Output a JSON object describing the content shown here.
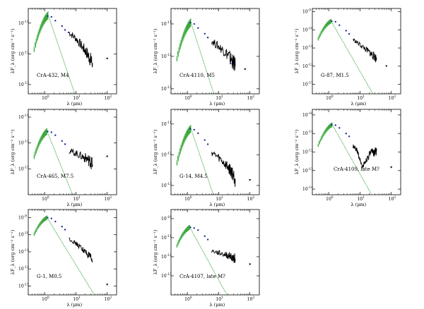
{
  "figure": {
    "xlabel": "λ (μm)",
    "ylabel": "λF_λ (erg cm⁻² s⁻¹)"
  },
  "chart_data": [
    {
      "type": "line",
      "label": "CrA-432, M4",
      "xscale": "log",
      "yscale": "log",
      "xlim": [
        0.3,
        200
      ],
      "ylim": [
        5e-14,
        3e-11
      ],
      "x_tick_labels": [
        "10^0",
        "10^1",
        "10^2"
      ],
      "y_tick_labels": [
        "10^-11",
        "10^-12",
        "10^-13"
      ],
      "model_peak": [
        1.3,
        1.8e-11
      ],
      "spectrum": [
        [
          6,
          5e-12
        ],
        [
          10,
          3.2e-12
        ],
        [
          16,
          1.7e-12
        ],
        [
          22,
          1.1e-12
        ],
        [
          28,
          7e-13
        ],
        [
          34,
          5e-13
        ]
      ],
      "photometry": [
        [
          1.25,
          1.7e-11
        ],
        [
          1.65,
          1.6e-11
        ],
        [
          2.2,
          1.2e-11
        ],
        [
          3.6,
          8e-12
        ],
        [
          4.5,
          6e-12
        ],
        [
          5.8,
          5e-12
        ],
        [
          100,
          7e-13
        ]
      ]
    },
    {
      "type": "line",
      "label": "CrA-4110, M5",
      "xscale": "log",
      "yscale": "log",
      "xlim": [
        0.3,
        200
      ],
      "ylim": [
        7e-14,
        3e-11
      ],
      "x_tick_labels": [
        "10^0",
        "10^1",
        "10^2"
      ],
      "y_tick_labels": [
        "10^-11",
        "10^-12",
        "10^-13"
      ],
      "model_peak": [
        1.3,
        1.1e-11
      ],
      "spectrum": [
        [
          6,
          3e-12
        ],
        [
          10,
          2e-12
        ],
        [
          16,
          1.4e-12
        ],
        [
          22,
          1e-12
        ],
        [
          28,
          7e-13
        ],
        [
          34,
          5e-13
        ]
      ],
      "photometry": [
        [
          1.25,
          1.1e-11
        ],
        [
          1.65,
          1e-11
        ],
        [
          2.2,
          7.5e-12
        ],
        [
          3.6,
          5e-12
        ],
        [
          4.5,
          3.8e-12
        ],
        [
          24,
          6e-13
        ],
        [
          70,
          4e-13
        ]
      ]
    },
    {
      "type": "line",
      "label": "G-87, M1.5",
      "xscale": "log",
      "yscale": "log",
      "xlim": [
        0.3,
        200
      ],
      "ylim": [
        3e-14,
        1.5e-09
      ],
      "x_tick_labels": [
        "10^0",
        "10^1",
        "10^2"
      ],
      "y_tick_labels": [
        "10^-9",
        "10^-10",
        "10^-11",
        "10^-12",
        "10^-13"
      ],
      "model_peak": [
        1.2,
        3e-10
      ],
      "spectrum": [
        [
          6,
          3e-11
        ],
        [
          10,
          1.5e-11
        ],
        [
          16,
          8e-12
        ],
        [
          22,
          5e-12
        ],
        [
          28,
          3.5e-12
        ],
        [
          34,
          2.5e-12
        ]
      ],
      "photometry": [
        [
          1.25,
          3e-10
        ],
        [
          1.65,
          2.8e-10
        ],
        [
          2.2,
          1.8e-10
        ],
        [
          3.6,
          9e-11
        ],
        [
          4.5,
          6e-11
        ],
        [
          70,
          1e-12
        ]
      ]
    },
    {
      "type": "line",
      "label": "CrA-465, M7.5",
      "xscale": "log",
      "yscale": "log",
      "xlim": [
        0.3,
        200
      ],
      "ylim": [
        1e-14,
        2e-11
      ],
      "x_tick_labels": [
        "10^0",
        "10^1",
        "10^2"
      ],
      "y_tick_labels": [
        "10^-11",
        "10^-12",
        "10^-13"
      ],
      "model_peak": [
        1.2,
        2.8e-12
      ],
      "spectrum": [
        [
          6,
          5e-13
        ],
        [
          10,
          4e-13
        ],
        [
          16,
          3e-13
        ],
        [
          22,
          2.5e-13
        ],
        [
          28,
          2e-13
        ],
        [
          34,
          1.5e-13
        ]
      ],
      "photometry": [
        [
          1.25,
          2.8e-12
        ],
        [
          1.65,
          2.6e-12
        ],
        [
          2.2,
          2e-12
        ],
        [
          3.6,
          1.2e-12
        ],
        [
          4.5,
          9e-13
        ],
        [
          100,
          3e-13
        ]
      ]
    },
    {
      "type": "line",
      "label": "G-14, M4.5",
      "xscale": "log",
      "yscale": "log",
      "xlim": [
        0.3,
        200
      ],
      "ylim": [
        5e-14,
        3e-11
      ],
      "x_tick_labels": [
        "10^0",
        "10^1",
        "10^2"
      ],
      "y_tick_labels": [
        "10^-11",
        "10^-12",
        "10^-13"
      ],
      "model_peak": [
        1.3,
        7e-12
      ],
      "spectrum": [
        [
          6,
          1.2e-12
        ],
        [
          10,
          8e-13
        ],
        [
          16,
          5e-13
        ],
        [
          22,
          3.5e-13
        ],
        [
          28,
          2.5e-13
        ],
        [
          34,
          1.6e-13
        ]
      ],
      "photometry": [
        [
          1.25,
          7e-12
        ],
        [
          1.65,
          6.5e-12
        ],
        [
          2.2,
          5e-12
        ],
        [
          3.6,
          3e-12
        ],
        [
          4.5,
          2.2e-12
        ],
        [
          100,
          1.5e-13
        ]
      ]
    },
    {
      "type": "line",
      "label": "CrA-4109, late M?",
      "xscale": "log",
      "yscale": "log",
      "xlim": [
        0.3,
        200
      ],
      "ylim": [
        5e-15,
        2e-10
      ],
      "x_tick_labels": [
        "10^0",
        "10^1",
        "10^2"
      ],
      "y_tick_labels": [
        "10^-10",
        "10^-11",
        "10^-12",
        "10^-13",
        "10^-14"
      ],
      "model_peak": [
        1.3,
        3e-11
      ],
      "spectrum": [
        [
          6,
          2e-12
        ],
        [
          8,
          1.2e-12
        ],
        [
          10,
          4e-13
        ],
        [
          12,
          1.5e-13
        ],
        [
          16,
          4e-13
        ],
        [
          22,
          9e-13
        ],
        [
          28,
          1e-12
        ],
        [
          34,
          1.1e-12
        ]
      ],
      "photometry": [
        [
          1.25,
          3e-11
        ],
        [
          1.65,
          2.8e-11
        ],
        [
          2.2,
          2e-11
        ],
        [
          3.6,
          1e-11
        ],
        [
          4.5,
          7e-12
        ],
        [
          100,
          1.5e-13
        ]
      ]
    },
    {
      "type": "line",
      "label": "G-1, M0.5",
      "xscale": "log",
      "yscale": "log",
      "xlim": [
        0.3,
        200
      ],
      "ylim": [
        3e-14,
        3e-09
      ],
      "x_tick_labels": [
        "10^0",
        "10^1",
        "10^2"
      ],
      "y_tick_labels": [
        "10^-9",
        "10^-10",
        "10^-11",
        "10^-12",
        "10^-13"
      ],
      "model_peak": [
        1.2,
        1e-09
      ],
      "spectrum": [
        [
          6,
          6e-11
        ],
        [
          10,
          3e-11
        ],
        [
          16,
          1.5e-11
        ],
        [
          22,
          8e-12
        ],
        [
          28,
          5e-12
        ],
        [
          34,
          3e-12
        ]
      ],
      "photometry": [
        [
          1.25,
          1e-09
        ],
        [
          1.65,
          9e-10
        ],
        [
          2.2,
          6e-10
        ],
        [
          3.6,
          3e-10
        ],
        [
          4.5,
          2e-10
        ],
        [
          100,
          1.2e-13
        ]
      ]
    },
    {
      "type": "line",
      "label": "CrA-4107, late M?",
      "xscale": "log",
      "yscale": "log",
      "xlim": [
        0.3,
        200
      ],
      "ylim": [
        1e-14,
        3e-10
      ],
      "x_tick_labels": [
        "10^0",
        "10^1",
        "10^2"
      ],
      "y_tick_labels": [
        "10^-10",
        "10^-11",
        "10^-12",
        "10^-13"
      ],
      "model_peak": [
        1.2,
        3.5e-11
      ],
      "spectrum": [
        [
          6,
          2e-12
        ],
        [
          10,
          1.6e-12
        ],
        [
          16,
          1.3e-12
        ],
        [
          22,
          1.1e-12
        ],
        [
          28,
          9e-13
        ],
        [
          34,
          8e-13
        ]
      ],
      "photometry": [
        [
          1.25,
          3.5e-11
        ],
        [
          1.65,
          3.2e-11
        ],
        [
          2.2,
          2.5e-11
        ],
        [
          3.6,
          1.2e-11
        ],
        [
          4.5,
          8e-12
        ],
        [
          100,
          4e-13
        ]
      ]
    }
  ]
}
